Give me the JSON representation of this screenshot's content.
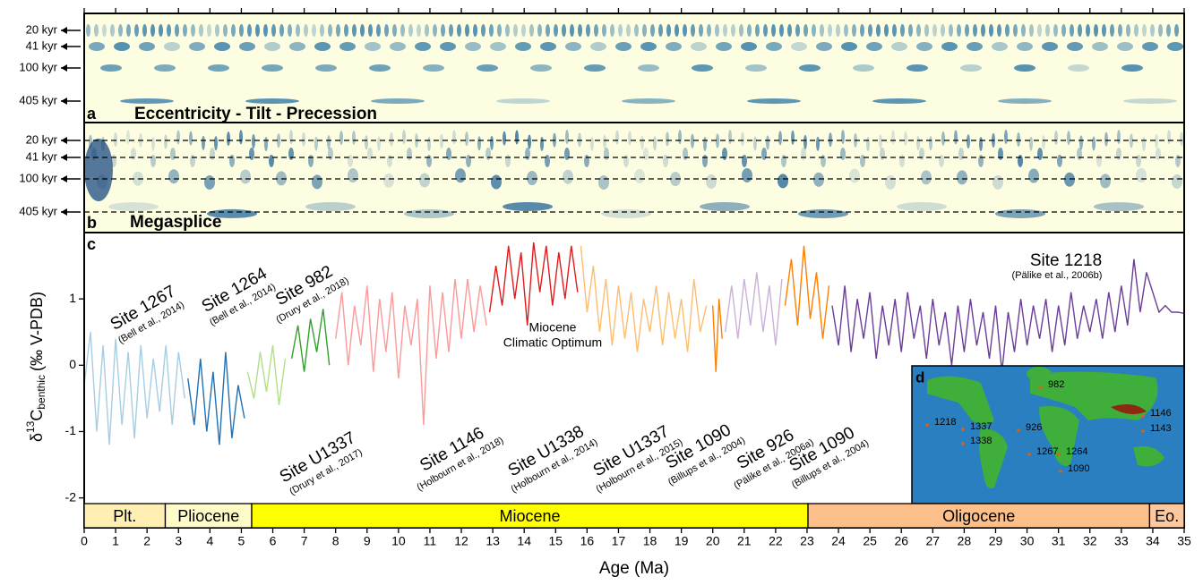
{
  "panels": {
    "a_letter": "a",
    "a_title": "Eccentricity - Tilt - Precession",
    "b_letter": "b",
    "b_title": "Megasplice",
    "c_letter": "c",
    "d_letter": "d",
    "periods": [
      "20 kyr",
      "41 kyr",
      "100 kyr",
      "405 kyr"
    ]
  },
  "chart_data": {
    "type": "line",
    "xlabel": "Age (Ma)",
    "ylabel_parts": [
      "δ",
      "13",
      "C",
      "benthic",
      "(‰ V-PDB)"
    ],
    "xlim": [
      0,
      35
    ],
    "ylim": [
      -2.45,
      2.0
    ],
    "xticks": [
      0,
      1,
      2,
      3,
      4,
      5,
      6,
      7,
      8,
      9,
      10,
      11,
      12,
      13,
      14,
      15,
      16,
      17,
      18,
      19,
      20,
      21,
      22,
      23,
      24,
      25,
      26,
      27,
      28,
      29,
      30,
      31,
      32,
      33,
      34,
      35
    ],
    "yticks": [
      -2,
      -1,
      0,
      1
    ],
    "annotation": [
      "Miocene",
      "Climatic Optimum"
    ],
    "epochs": [
      {
        "name": "Plt.",
        "start": 0,
        "end": 2.58,
        "color": "#ffefb3"
      },
      {
        "name": "Pliocene",
        "start": 2.58,
        "end": 5.33,
        "color": "#fffbc8"
      },
      {
        "name": "Miocene",
        "start": 5.33,
        "end": 23.03,
        "color": "#ffff00"
      },
      {
        "name": "Oligocene",
        "start": 23.03,
        "end": 33.9,
        "color": "#fdc08a"
      },
      {
        "name": "Eo.",
        "start": 33.9,
        "end": 35,
        "color": "#fdc89e"
      }
    ],
    "series": [
      {
        "name": "Site 1267",
        "ref": "(Bell et al., 2014)",
        "color": "#a6cde3",
        "x": [
          0,
          0.2,
          0.4,
          0.6,
          0.8,
          1.0,
          1.2,
          1.4,
          1.6,
          1.8,
          2.0,
          2.2,
          2.4,
          2.6,
          2.8,
          3.0,
          3.2
        ],
        "values": [
          -0.3,
          0.5,
          -1.0,
          0.3,
          -1.2,
          0.4,
          -0.9,
          0.2,
          -1.1,
          0.3,
          -0.8,
          0.1,
          -0.7,
          0.3,
          -0.9,
          0.2,
          -0.5
        ]
      },
      {
        "name": "Site 1264",
        "ref": "(Bell et al., 2014)",
        "color": "#2171b5",
        "x": [
          3.3,
          3.5,
          3.7,
          3.9,
          4.1,
          4.3,
          4.5,
          4.7,
          4.9,
          5.1
        ],
        "values": [
          -0.2,
          -0.9,
          0.1,
          -1.0,
          -0.1,
          -1.2,
          0.2,
          -1.1,
          -0.3,
          -0.8
        ]
      },
      {
        "name": "Site 982",
        "ref": "(Drury et al., 2018)",
        "color": "#b2df8a",
        "x": [
          5.2,
          5.4,
          5.6,
          5.8,
          6.0,
          6.2,
          6.4
        ],
        "values": [
          -0.1,
          -0.5,
          0.2,
          -0.4,
          0.3,
          -0.6,
          0.1
        ]
      },
      {
        "name": "Site U1337",
        "ref": "(Drury et al., 2017)",
        "color": "#33a02c",
        "x": [
          6.6,
          6.8,
          7.0,
          7.2,
          7.4,
          7.6,
          7.8
        ],
        "values": [
          0.1,
          0.6,
          -0.1,
          0.7,
          0.2,
          0.85,
          0.0
        ]
      },
      {
        "name": "Site 1146",
        "ref": "(Holbourn et al., 2018)",
        "color": "#fb9a99",
        "x": [
          8.0,
          8.2,
          8.4,
          8.6,
          8.8,
          9.0,
          9.2,
          9.4,
          9.6,
          9.8,
          10.0,
          10.2,
          10.4,
          10.6,
          10.8,
          11.0,
          11.2,
          11.4,
          11.6,
          11.8,
          12.0,
          12.2,
          12.4,
          12.6,
          12.8
        ],
        "values": [
          0.4,
          1.1,
          0.0,
          0.9,
          0.3,
          1.2,
          -0.1,
          1.0,
          0.2,
          1.1,
          -0.2,
          0.9,
          0.3,
          1.0,
          -0.9,
          1.2,
          0.1,
          1.1,
          0.2,
          1.3,
          0.4,
          1.3,
          0.5,
          1.2,
          0.6
        ]
      },
      {
        "name": "Site U1338",
        "ref": "(Holbourn et al., 2014)",
        "color": "#e31a1c",
        "x": [
          12.9,
          13.1,
          13.3,
          13.5,
          13.7,
          13.9,
          14.1,
          14.3,
          14.5,
          14.7,
          14.9,
          15.1,
          15.3,
          15.5,
          15.7
        ],
        "values": [
          0.8,
          1.5,
          0.9,
          1.8,
          1.0,
          1.7,
          0.6,
          1.85,
          1.1,
          1.8,
          0.9,
          1.7,
          1.0,
          1.8,
          1.1
        ]
      },
      {
        "name": "Site U1337",
        "ref": "(Holbourn et al., 2015)",
        "color": "#fdbf6f",
        "x": [
          15.8,
          16.0,
          16.2,
          16.4,
          16.6,
          16.8,
          17.0,
          17.2,
          17.4,
          17.6,
          17.8,
          18.0,
          18.2,
          18.4,
          18.6,
          18.8,
          19.0,
          19.2,
          19.4,
          19.6,
          19.8
        ],
        "values": [
          1.8,
          0.8,
          1.5,
          0.5,
          1.3,
          0.3,
          1.2,
          0.4,
          1.1,
          0.2,
          1.0,
          0.5,
          1.2,
          0.3,
          1.1,
          0.4,
          1.0,
          0.2,
          1.3,
          0.5,
          0.9
        ]
      },
      {
        "name": "Site 1090",
        "ref": "(Billups et al., 2004)",
        "color": "#ff7f00",
        "x": [
          20.0,
          20.1,
          20.2,
          20.3
        ],
        "values": [
          0.9,
          -0.1,
          1.0,
          0.4
        ]
      },
      {
        "name": "Site 926",
        "ref": "(Pälike et al., 2006a)",
        "color": "#cab2d6",
        "x": [
          20.4,
          20.6,
          20.8,
          21.0,
          21.2,
          21.4,
          21.6,
          21.8,
          22.0,
          22.2
        ],
        "values": [
          0.5,
          1.2,
          0.4,
          1.3,
          0.6,
          1.4,
          0.5,
          1.2,
          0.3,
          1.3
        ]
      },
      {
        "name": "Site 1090",
        "ref": "(Billups et al., 2004)",
        "color": "#ff7f00",
        "x": [
          22.3,
          22.5,
          22.7,
          22.9,
          23.1,
          23.3,
          23.5,
          23.7
        ],
        "values": [
          0.9,
          1.6,
          0.6,
          1.8,
          0.7,
          1.4,
          0.4,
          1.2
        ]
      },
      {
        "name": "Site 1218",
        "ref": "(Pälike et al., 2006b)",
        "color": "#6a3d9a",
        "x": [
          23.8,
          24.0,
          24.2,
          24.4,
          24.6,
          24.8,
          25.0,
          25.2,
          25.4,
          25.6,
          25.8,
          26.0,
          26.2,
          26.4,
          26.6,
          26.8,
          27.0,
          27.2,
          27.4,
          27.6,
          27.8,
          28.0,
          28.2,
          28.4,
          28.6,
          28.8,
          29.0,
          29.2,
          29.4,
          29.6,
          29.8,
          30.0,
          30.2,
          30.4,
          30.6,
          30.8,
          31.0,
          31.2,
          31.4,
          31.6,
          31.8,
          32.0,
          32.2,
          32.4,
          32.6,
          32.8,
          33.0,
          33.2,
          33.4,
          33.6,
          33.8,
          34.0,
          34.2,
          34.4,
          34.6,
          34.8,
          35.0
        ],
        "values": [
          0.9,
          0.3,
          1.2,
          0.2,
          1.0,
          0.4,
          1.1,
          0.1,
          0.9,
          0.3,
          1.0,
          0.2,
          1.1,
          0.4,
          0.9,
          0.1,
          1.0,
          0.3,
          0.8,
          0.0,
          0.9,
          0.2,
          1.0,
          0.3,
          0.8,
          0.1,
          0.9,
          -0.1,
          0.8,
          0.2,
          1.0,
          0.3,
          0.9,
          0.4,
          1.0,
          0.2,
          0.9,
          0.3,
          1.1,
          0.4,
          0.9,
          0.5,
          1.0,
          0.4,
          1.1,
          0.5,
          1.2,
          0.6,
          1.6,
          0.8,
          1.4,
          1.1,
          0.8,
          0.9,
          0.8,
          0.8,
          0.78
        ]
      }
    ],
    "map_sites": [
      "982",
      "1218",
      "1337",
      "926",
      "1146",
      "1143",
      "1338",
      "1267",
      "1264",
      "1090"
    ]
  }
}
